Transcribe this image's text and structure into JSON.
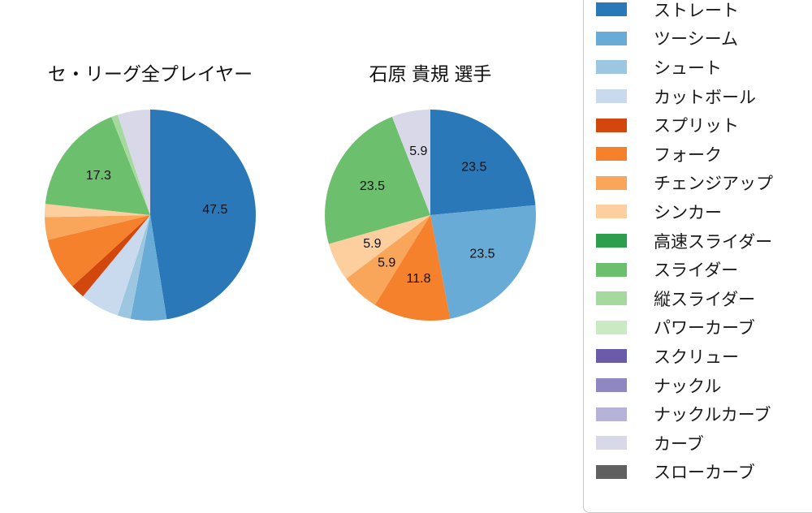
{
  "chart_data": [
    {
      "type": "pie",
      "title": "セ・リーグ全プレイヤー",
      "start_angle_deg": 90,
      "direction": "clockwise",
      "unit": "percent",
      "slices": [
        {
          "name": "ストレート",
          "value": 47.5,
          "label": "47.5",
          "color": "#2b78b8"
        },
        {
          "name": "ツーシーム",
          "value": 5.5,
          "label": "",
          "color": "#68abd6"
        },
        {
          "name": "シュート",
          "value": 2.0,
          "label": "",
          "color": "#9dc7e0"
        },
        {
          "name": "カットボール",
          "value": 6.0,
          "label": "",
          "color": "#c9daef"
        },
        {
          "name": "スプリット",
          "value": 2.2,
          "label": "",
          "color": "#d2470d"
        },
        {
          "name": "フォーク",
          "value": 8.0,
          "label": "",
          "color": "#f5812d"
        },
        {
          "name": "チェンジアップ",
          "value": 3.5,
          "label": "",
          "color": "#f9a65b"
        },
        {
          "name": "シンカー",
          "value": 2.0,
          "label": "",
          "color": "#fdcf9f"
        },
        {
          "name": "スライダー",
          "value": 17.3,
          "label": "17.3",
          "color": "#6cbf6c"
        },
        {
          "name": "縦スライダー",
          "value": 1.0,
          "label": "",
          "color": "#a5d99f"
        },
        {
          "name": "カーブ",
          "value": 5.0,
          "label": "",
          "color": "#d9d8e9"
        }
      ]
    },
    {
      "type": "pie",
      "title": "石原 貴規 選手",
      "start_angle_deg": 90,
      "direction": "clockwise",
      "unit": "percent",
      "slices": [
        {
          "name": "ストレート",
          "value": 23.5,
          "label": "23.5",
          "color": "#2b78b8"
        },
        {
          "name": "ツーシーム",
          "value": 23.5,
          "label": "23.5",
          "color": "#68abd6"
        },
        {
          "name": "フォーク",
          "value": 11.8,
          "label": "11.8",
          "color": "#f5812d"
        },
        {
          "name": "チェンジアップ",
          "value": 5.9,
          "label": "5.9",
          "color": "#f9a65b"
        },
        {
          "name": "シンカー",
          "value": 5.9,
          "label": "5.9",
          "color": "#fdcf9f"
        },
        {
          "name": "スライダー",
          "value": 23.5,
          "label": "23.5",
          "color": "#6cbf6c"
        },
        {
          "name": "カーブ",
          "value": 5.9,
          "label": "5.9",
          "color": "#d9d8e9"
        }
      ]
    }
  ],
  "legend": {
    "position": "right",
    "items": [
      {
        "label": "ストレート",
        "color": "#2b78b8"
      },
      {
        "label": "ツーシーム",
        "color": "#68abd6"
      },
      {
        "label": "シュート",
        "color": "#9dc7e0"
      },
      {
        "label": "カットボール",
        "color": "#c9daef"
      },
      {
        "label": "スプリット",
        "color": "#d2470d"
      },
      {
        "label": "フォーク",
        "color": "#f5812d"
      },
      {
        "label": "チェンジアップ",
        "color": "#f9a65b"
      },
      {
        "label": "シンカー",
        "color": "#fdcf9f"
      },
      {
        "label": "高速スライダー",
        "color": "#2d9e4d"
      },
      {
        "label": "スライダー",
        "color": "#6cbf6c"
      },
      {
        "label": "縦スライダー",
        "color": "#a5d99f"
      },
      {
        "label": "パワーカーブ",
        "color": "#cbe9c3"
      },
      {
        "label": "スクリュー",
        "color": "#6a5ca8"
      },
      {
        "label": "ナックル",
        "color": "#8f87c2"
      },
      {
        "label": "ナックルカーブ",
        "color": "#b6b3d8"
      },
      {
        "label": "カーブ",
        "color": "#d9d8e9"
      },
      {
        "label": "スローカーブ",
        "color": "#606060"
      }
    ]
  },
  "colors": {
    "background": "#ffffff",
    "legend_border": "#c9c9c9",
    "label_text": "#111111"
  }
}
